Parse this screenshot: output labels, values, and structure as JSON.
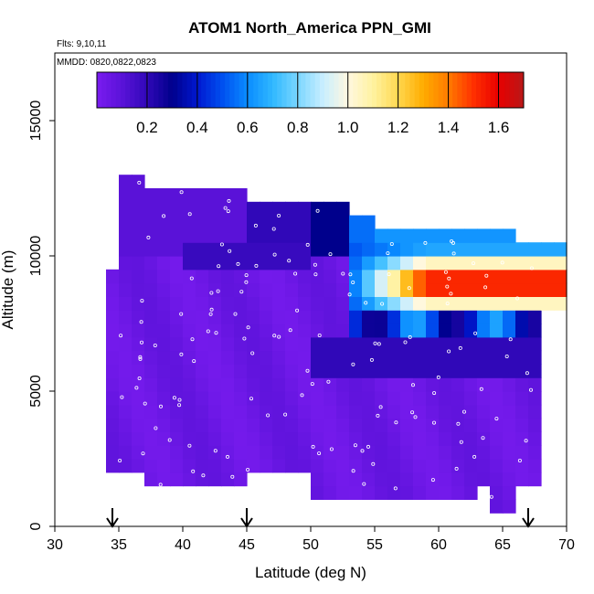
{
  "chart_data": {
    "type": "heatmap",
    "title": "ATOM1 North_America PPN_GMI",
    "annotations": [
      "Flts: 9,10,11",
      "MMDD: 0820,0822,0823"
    ],
    "xlabel": "Latitude (deg N)",
    "ylabel": "Altitude (m)",
    "xlim": [
      30,
      70
    ],
    "ylim": [
      0,
      17500
    ],
    "x_ticks": [
      "30",
      "35",
      "40",
      "45",
      "50",
      "55",
      "60",
      "65",
      "70"
    ],
    "y_ticks": [
      "0",
      "5000",
      "10000",
      "15000"
    ],
    "colorbar": {
      "range": [
        0,
        1.7
      ],
      "ticks": [
        "0.2",
        "0.4",
        "0.6",
        "0.8",
        "1.0",
        "1.2",
        "1.4",
        "1.6"
      ],
      "colors": [
        "#7a1cf0",
        "#5a12d8",
        "#3008b8",
        "#00008c",
        "#0018d0",
        "#0050f0",
        "#0a8cff",
        "#30b8ff",
        "#7ad6ff",
        "#c8eeff",
        "#fff8e0",
        "#fff2a0",
        "#ffd850",
        "#ffac00",
        "#ff7a00",
        "#ff3000",
        "#e80000",
        "#b81818"
      ]
    },
    "arrows_at_latitude": [
      34.5,
      45,
      67
    ]
  }
}
